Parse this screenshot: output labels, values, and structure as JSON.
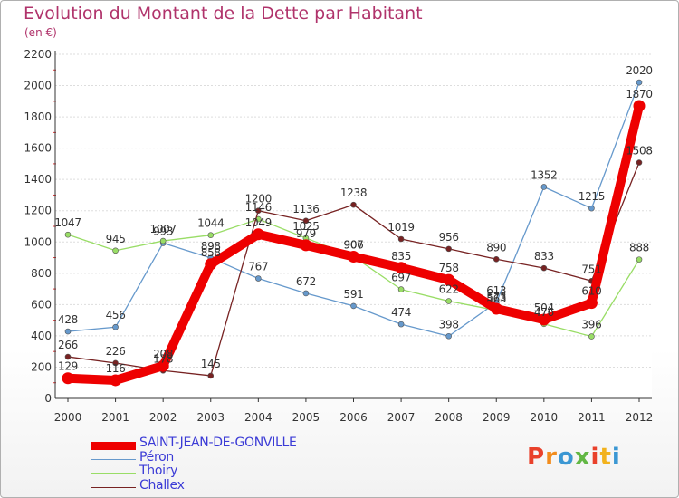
{
  "title": "Evolution du Montant de la Dette par Habitant",
  "subtitle": "(en €)",
  "logo": {
    "letters": [
      "P",
      "r",
      "o",
      "x",
      "i",
      "t",
      "i"
    ],
    "colors": [
      "#e9412b",
      "#f28c1c",
      "#3b97d3",
      "#62b744",
      "#e9412b",
      "#f2b21c",
      "#3b97d3"
    ]
  },
  "chart_data": {
    "type": "line",
    "title": "Evolution du Montant de la Dette par Habitant",
    "unit": "(en €)",
    "x": [
      "2000",
      "2001",
      "2002",
      "2003",
      "2004",
      "2005",
      "2006",
      "2007",
      "2008",
      "2009",
      "2010",
      "2011",
      "2012"
    ],
    "ylim": [
      0,
      2200
    ],
    "yticks": [
      0,
      200,
      400,
      600,
      800,
      1000,
      1200,
      1400,
      1600,
      1800,
      2000,
      2200
    ],
    "grid": true,
    "legend_position": "bottom-left",
    "series": [
      {
        "name": "SAINT-JEAN-DE-GONVILLE",
        "color": "#ee0000",
        "values": [
          129,
          116,
          208,
          858,
          1049,
          979,
          906,
          835,
          758,
          573,
          504,
          610,
          1870
        ]
      },
      {
        "name": "Péron",
        "color": "#6699cc",
        "values": [
          428,
          456,
          993,
          898,
          767,
          672,
          591,
          474,
          398,
          613,
          1352,
          1215,
          2020
        ]
      },
      {
        "name": "Thoiry",
        "color": "#99dd66",
        "values": [
          1047,
          945,
          1007,
          1044,
          1146,
          1025,
          907,
          697,
          622,
          563,
          476,
          396,
          888
        ]
      },
      {
        "name": "Challex",
        "color": "#772222",
        "values": [
          266,
          226,
          178,
          145,
          1200,
          1136,
          1238,
          1019,
          956,
          890,
          833,
          751,
          1508
        ]
      }
    ]
  }
}
